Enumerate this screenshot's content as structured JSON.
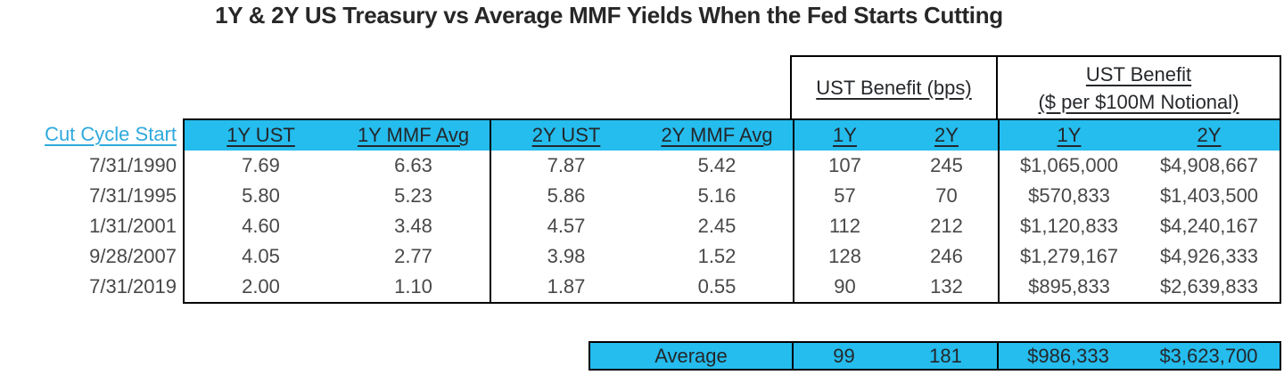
{
  "title": "1Y & 2Y US Treasury vs Average MMF Yields When the Fed Starts Cutting",
  "colors": {
    "accent_cyan": "#25BCEE",
    "row_label_cyan": "#2EA9DC",
    "body_text": "#48484A",
    "header_text": "#23272A",
    "border": "#000000"
  },
  "chart_data": {
    "type": "table",
    "title": "1Y & 2Y US Treasury vs Average MMF Yields When the Fed Starts Cutting",
    "row_label_header": "Cut Cycle Start",
    "group_headers": {
      "bps": "UST Benefit (bps)",
      "dollar_line1": "UST Benefit",
      "dollar_line2": "($ per $100M Notional)"
    },
    "columns": [
      "1Y UST",
      "1Y MMF Avg",
      "2Y UST",
      "2Y MMF Avg",
      "1Y",
      "2Y",
      "1Y",
      "2Y"
    ],
    "rows": [
      {
        "date": "7/31/1990",
        "values": [
          "7.69",
          "6.63",
          "7.87",
          "5.42",
          "107",
          "245",
          "$1,065,000",
          "$4,908,667"
        ]
      },
      {
        "date": "7/31/1995",
        "values": [
          "5.80",
          "5.23",
          "5.86",
          "5.16",
          "57",
          "70",
          "$570,833",
          "$1,403,500"
        ]
      },
      {
        "date": "1/31/2001",
        "values": [
          "4.60",
          "3.48",
          "4.57",
          "2.45",
          "112",
          "212",
          "$1,120,833",
          "$4,240,167"
        ]
      },
      {
        "date": "9/28/2007",
        "values": [
          "4.05",
          "2.77",
          "3.98",
          "1.52",
          "128",
          "246",
          "$1,279,167",
          "$4,926,333"
        ]
      },
      {
        "date": "7/31/2019",
        "values": [
          "2.00",
          "1.10",
          "1.87",
          "0.55",
          "90",
          "132",
          "$895,833",
          "$2,639,833"
        ]
      }
    ],
    "average": {
      "label": "Average",
      "values": [
        "99",
        "181",
        "$986,333",
        "$3,623,700"
      ]
    }
  }
}
